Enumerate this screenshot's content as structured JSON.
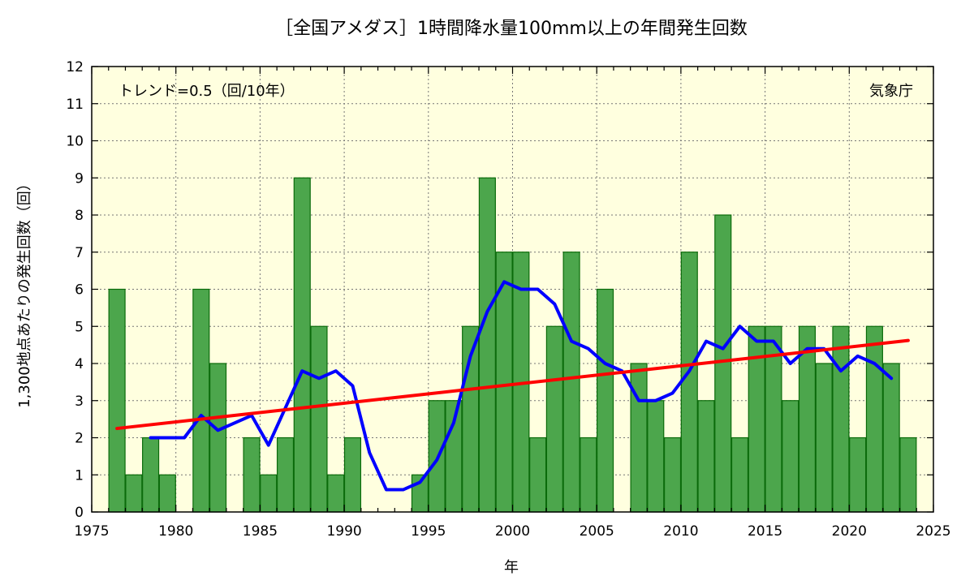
{
  "chart_data": {
    "type": "bar",
    "title": "［全国アメダス］1時間降水量100mm以上の年間発生回数",
    "xlabel": "年",
    "ylabel": "1,300地点あたりの発生回数（回）",
    "xlim": [
      1975,
      2025
    ],
    "ylim": [
      0,
      12
    ],
    "x_ticks": [
      1975,
      1980,
      1985,
      1990,
      1995,
      2000,
      2005,
      2010,
      2015,
      2020,
      2025
    ],
    "y_ticks": [
      0,
      1,
      2,
      3,
      4,
      5,
      6,
      7,
      8,
      9,
      10,
      11,
      12
    ],
    "grid": true,
    "background_color": "#ffffdf",
    "series": [
      {
        "type": "bar",
        "color": "#4ca64c",
        "edge_color": "#0b6b0b",
        "x": [
          1976,
          1977,
          1978,
          1979,
          1980,
          1981,
          1982,
          1983,
          1984,
          1985,
          1986,
          1987,
          1988,
          1989,
          1990,
          1991,
          1992,
          1993,
          1994,
          1995,
          1996,
          1997,
          1998,
          1999,
          2000,
          2001,
          2002,
          2003,
          2004,
          2005,
          2006,
          2007,
          2008,
          2009,
          2010,
          2011,
          2012,
          2013,
          2014,
          2015,
          2016,
          2017,
          2018,
          2019,
          2020,
          2021,
          2022,
          2023,
          2024
        ],
        "values": [
          6,
          1,
          2,
          1,
          0,
          6,
          4,
          0,
          2,
          1,
          2,
          9,
          5,
          1,
          2,
          0,
          0,
          0,
          1,
          3,
          3,
          5,
          9,
          7,
          7,
          2,
          5,
          7,
          2,
          6,
          0,
          4,
          3,
          2,
          7,
          3,
          8,
          2,
          5,
          5,
          3,
          5,
          4,
          5,
          2,
          5,
          4,
          2,
          0
        ]
      },
      {
        "type": "line",
        "color": "#0000ff",
        "x": [
          1978,
          1979,
          1980,
          1981,
          1982,
          1983,
          1984,
          1985,
          1986,
          1987,
          1988,
          1989,
          1990,
          1991,
          1992,
          1993,
          1994,
          1995,
          1996,
          1997,
          1998,
          1999,
          2000,
          2001,
          2002,
          2003,
          2004,
          2005,
          2006,
          2007,
          2008,
          2009,
          2010,
          2011,
          2012,
          2013,
          2014,
          2015,
          2016,
          2017,
          2018,
          2019,
          2020,
          2021,
          2022
        ],
        "values": [
          2.0,
          2.0,
          2.0,
          2.6,
          2.2,
          2.4,
          2.6,
          1.8,
          2.8,
          3.8,
          3.6,
          3.8,
          3.4,
          1.6,
          0.6,
          0.6,
          0.8,
          1.4,
          2.4,
          4.2,
          5.4,
          6.2,
          6.0,
          6.0,
          5.6,
          4.6,
          4.4,
          4.0,
          3.8,
          3.0,
          3.0,
          3.2,
          3.8,
          4.6,
          4.4,
          5.0,
          4.6,
          4.6,
          4.0,
          4.4,
          4.4,
          3.8,
          4.2,
          4.0,
          3.6
        ]
      },
      {
        "type": "line",
        "color": "#ff0000",
        "x": [
          1976,
          2023
        ],
        "values": [
          2.25,
          4.62
        ]
      }
    ],
    "annotations": {
      "trend": "トレンド=0.5（回/10年）",
      "source": "気象庁"
    }
  }
}
